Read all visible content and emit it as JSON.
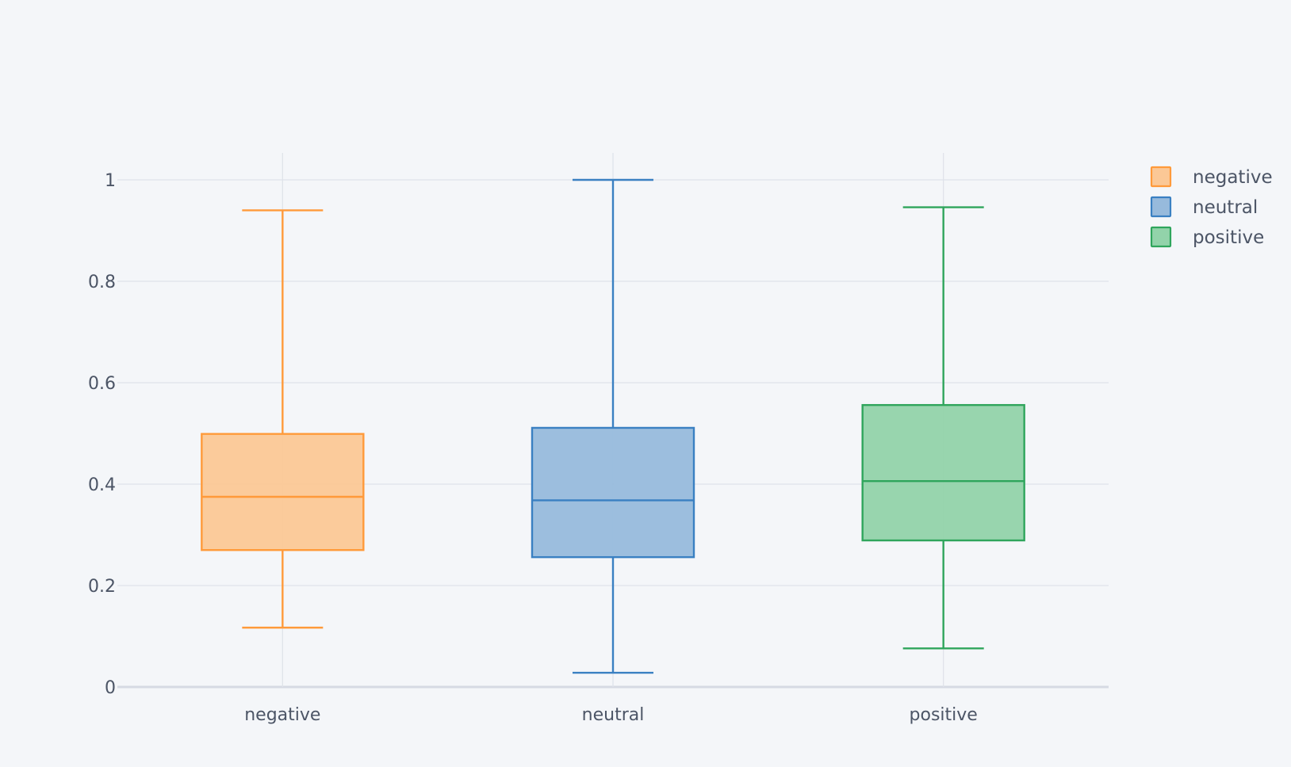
{
  "chart_data": {
    "type": "box",
    "title": "",
    "xlabel": "",
    "ylabel": "",
    "categories": [
      "negative",
      "neutral",
      "positive"
    ],
    "ylim": [
      0,
      1.05
    ],
    "yticks": [
      0,
      0.2,
      0.4,
      0.6,
      0.8,
      1
    ],
    "ytick_labels": [
      "0",
      "0.2",
      "0.4",
      "0.6",
      "0.8",
      "1"
    ],
    "grid": true,
    "legend": {
      "placement": "top-right",
      "entries": [
        "negative",
        "neutral",
        "positive"
      ]
    },
    "series": [
      {
        "name": "negative",
        "category": "negative",
        "color": "#ff9a3a",
        "fill": "#fbc896",
        "min": 0.117,
        "q1": 0.27,
        "median": 0.375,
        "q3": 0.499,
        "max": 0.94
      },
      {
        "name": "neutral",
        "category": "neutral",
        "color": "#3a80c2",
        "fill": "#97badc",
        "min": 0.028,
        "q1": 0.256,
        "median": 0.368,
        "q3": 0.511,
        "max": 1.0
      },
      {
        "name": "positive",
        "category": "positive",
        "color": "#2fa55c",
        "fill": "#92d3aa",
        "min": 0.076,
        "q1": 0.289,
        "median": 0.406,
        "q3": 0.556,
        "max": 0.946
      }
    ]
  }
}
